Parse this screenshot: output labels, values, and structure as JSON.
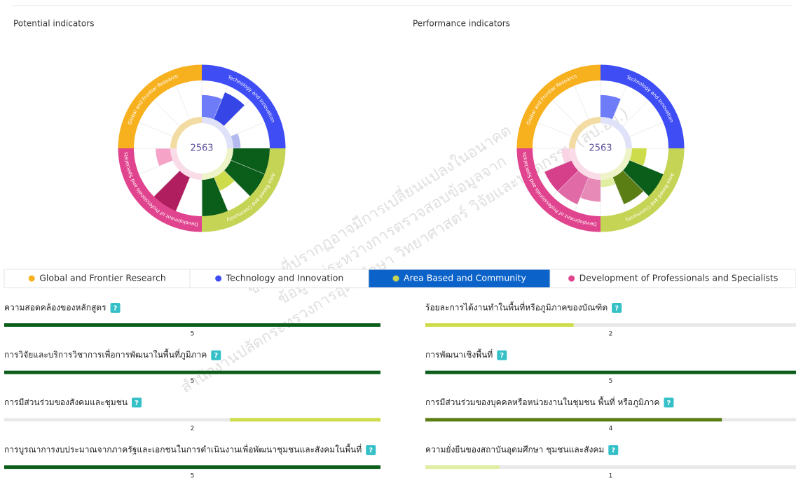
{
  "charts": [
    {
      "title": "Potential indicators",
      "center": "2563",
      "segments": [
        {
          "name": "Technology and Innovation",
          "color": "#3f4df5",
          "inner_color": "#dfe2f8",
          "values": [
            3,
            4,
            0,
            1
          ],
          "colors": [
            "#6f7cf8",
            "#3545e6",
            null,
            "#b4baee"
          ]
        },
        {
          "name": "Area Based and Community",
          "color": "#c5d454",
          "inner_color": "#eef3c8",
          "values": [
            5,
            5,
            2,
            5
          ],
          "colors": [
            "#0b5e1a",
            "#0b5e1a",
            "#cddc4a",
            "#0b5e1a"
          ]
        },
        {
          "name": "Development of Professionals and Specialists",
          "color": "#e0448e",
          "inner_color": "#fadbe8",
          "values": [
            0,
            5,
            0,
            2
          ],
          "colors": [
            null,
            "#b01e5f",
            null,
            "#f5a3c7"
          ]
        },
        {
          "name": "Global and Frontier Research",
          "color": "#f7b01e",
          "inner_color": "#f3dca4",
          "values": [
            0,
            0,
            0,
            0
          ],
          "colors": [
            null,
            null,
            null,
            null
          ]
        }
      ]
    },
    {
      "title": "Performance indicators",
      "center": "2563",
      "segments": [
        {
          "name": "Technology and Innovation",
          "color": "#3f4df5",
          "inner_color": "#dfe2f8",
          "values": [
            3,
            0,
            0,
            0
          ],
          "colors": [
            "#6f7cf8",
            null,
            null,
            null
          ]
        },
        {
          "name": "Area Based and Community",
          "color": "#c5d454",
          "inner_color": "#eef3c8",
          "values": [
            2,
            5,
            4,
            1
          ],
          "colors": [
            "#cddc4a",
            "#0b5e1a",
            "#5a7d14",
            "#dfeea0"
          ]
        },
        {
          "name": "Development of Professionals and Specialists",
          "color": "#e0448e",
          "inner_color": "#fadbe8",
          "values": [
            3,
            4,
            4,
            1
          ],
          "colors": [
            "#e88ab8",
            "#e06aa6",
            "#d63f8a",
            "#f8d3e4"
          ]
        },
        {
          "name": "Global and Frontier Research",
          "color": "#f7b01e",
          "inner_color": "#f3dca4",
          "values": [
            0,
            0,
            0,
            0
          ],
          "colors": [
            null,
            null,
            null,
            null
          ]
        }
      ]
    }
  ],
  "max": 5,
  "legend": {
    "selected": 2,
    "items": [
      {
        "name": "Global and Frontier Research",
        "color": "#f7b01e"
      },
      {
        "name": "Technology and Innovation",
        "color": "#3f4df5"
      },
      {
        "name": "Area Based and Community",
        "color": "#c5d454"
      },
      {
        "name": "Development of Professionals and Specialists",
        "color": "#e0448e"
      }
    ]
  },
  "help_icon": "?",
  "indicators": [
    [
      {
        "label": "ความสอดคล้องของหลักสูตร",
        "value": 5,
        "color": "#0b5e1a"
      },
      {
        "label": "การวิจัยและบริการวิชาการเพื่อการพัฒนาในพื้นที่ภูมิภาค",
        "value": 5,
        "color": "#0b5e1a"
      },
      {
        "label": "การมีส่วนร่วมของสังคมและชุมชน",
        "value": 2,
        "color": "#cddc4a",
        "fill_from": "right"
      },
      {
        "label": "การบูรณาการงบประมาณจากภาครัฐและเอกชนในการดำเนินงานเพื่อพัฒนาชุมชนและสังคมในพื้นที่",
        "value": 5,
        "color": "#0b5e1a"
      }
    ],
    [
      {
        "label": "ร้อยละการได้งานทำในพื้นที่หรือภูมิภาคของบัณฑิต",
        "value": 2,
        "color": "#cddc4a"
      },
      {
        "label": "การพัฒนาเชิงพื้นที่",
        "value": 5,
        "color": "#0b5e1a"
      },
      {
        "label": "การมีส่วนร่วมของบุคคลหรือหน่วยงานในชุมชน พื้นที่ หรือภูมิภาค",
        "value": 4,
        "color": "#5a7d14"
      },
      {
        "label": "ความยั่งยืนของสถาบันอุดมศึกษา ชุมชนและสังคม",
        "value": 1,
        "color": "#dfeea0"
      }
    ]
  ],
  "watermark": [
    "ข้อมูลที่ปรากฏอาจมีการเปลี่ยนแปลงในอนาคต",
    "ข้อมูลอยู่ระหว่างการตรวจสอบข้อมูลจาก",
    "สำนักงานปลัดกระทรวงการอุดมศึกษา วิทยาศาสตร์ วิจัยและนวัตกรรม (สป.อว.)"
  ]
}
